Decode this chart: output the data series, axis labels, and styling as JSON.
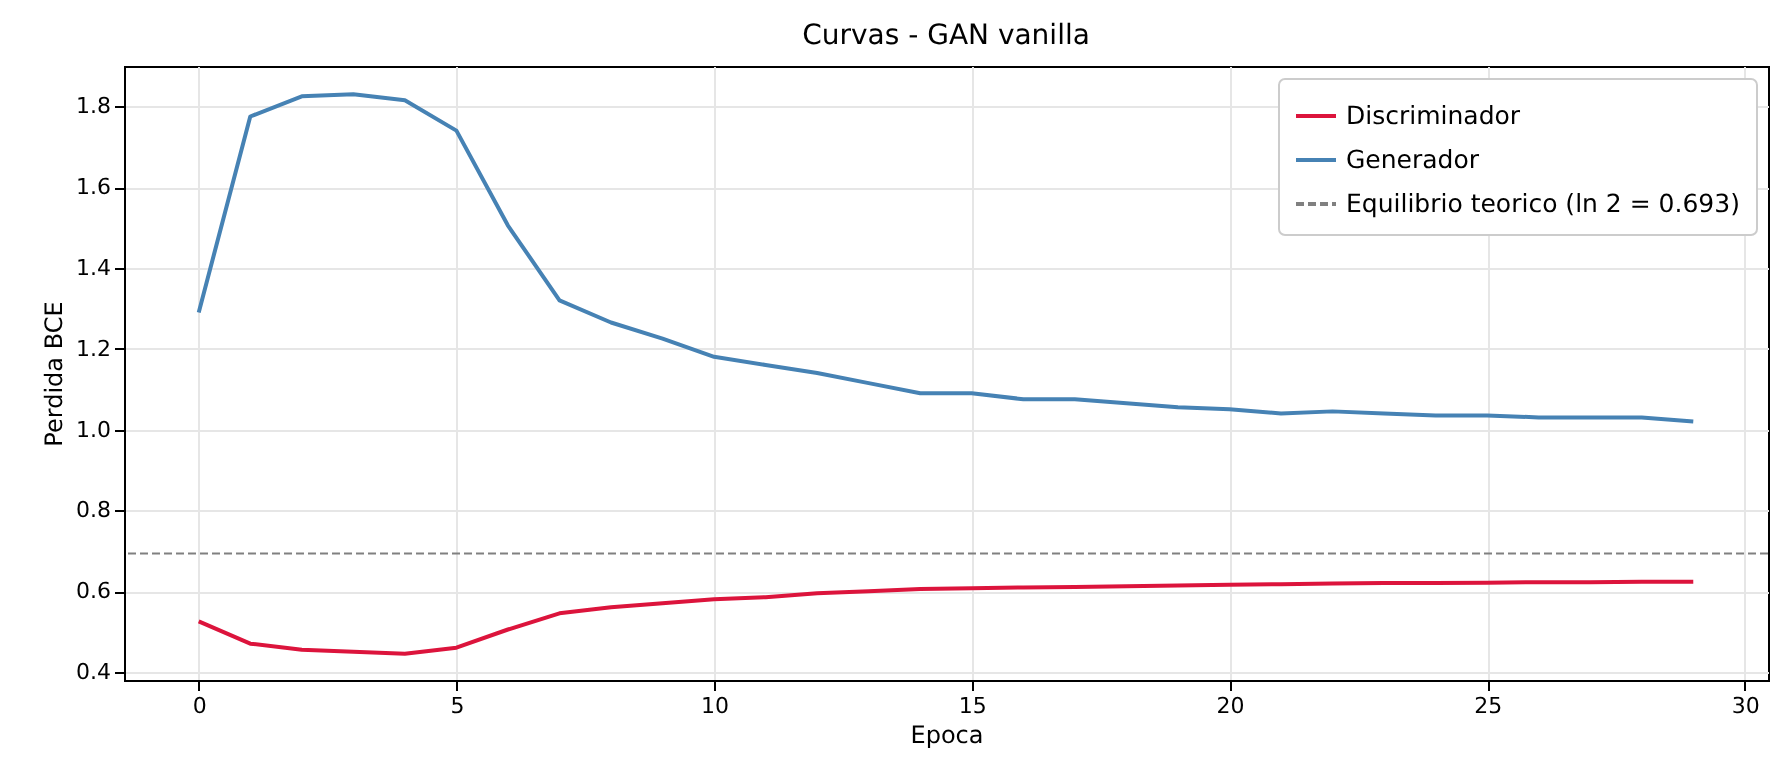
{
  "chart_data": {
    "type": "line",
    "title": "Curvas - GAN vanilla",
    "xlabel": "Epoca",
    "ylabel": "Perdida BCE",
    "x": [
      0,
      1,
      2,
      3,
      4,
      5,
      6,
      7,
      8,
      9,
      10,
      11,
      12,
      13,
      14,
      15,
      16,
      17,
      18,
      19,
      20,
      21,
      22,
      23,
      24,
      25,
      26,
      27,
      28,
      29
    ],
    "series": [
      {
        "name": "Discriminador",
        "color": "#dc143c",
        "values": [
          0.525,
          0.47,
          0.455,
          0.45,
          0.445,
          0.46,
          0.505,
          0.545,
          0.56,
          0.57,
          0.58,
          0.585,
          0.595,
          0.6,
          0.605,
          0.607,
          0.609,
          0.61,
          0.612,
          0.614,
          0.616,
          0.617,
          0.619,
          0.62,
          0.62,
          0.621,
          0.622,
          0.622,
          0.623,
          0.623
        ]
      },
      {
        "name": "Generador",
        "color": "#4682b4",
        "values": [
          1.29,
          1.775,
          1.825,
          1.83,
          1.815,
          1.74,
          1.505,
          1.32,
          1.265,
          1.225,
          1.18,
          1.16,
          1.14,
          1.115,
          1.09,
          1.09,
          1.075,
          1.075,
          1.065,
          1.055,
          1.05,
          1.04,
          1.045,
          1.04,
          1.035,
          1.035,
          1.03,
          1.03,
          1.03,
          1.02
        ]
      }
    ],
    "ref_lines": [
      {
        "axis": "y",
        "value": 0.693,
        "label": "Equilibrio teorico (ln 2 = 0.693)",
        "color": "#808080",
        "line_style": "dashed"
      }
    ],
    "xlim": [
      -1.45,
      30.45
    ],
    "xticks": [
      0,
      5,
      10,
      15,
      20,
      25,
      30
    ],
    "ylim": [
      0.38,
      1.9
    ],
    "yticks": [
      {
        "value": 0.4,
        "label": "0.4"
      },
      {
        "value": 0.6,
        "label": "0.6"
      },
      {
        "value": 0.8,
        "label": "0.8"
      },
      {
        "value": 1.0,
        "label": "1.0"
      },
      {
        "value": 1.2,
        "label": "1.2"
      },
      {
        "value": 1.4,
        "label": "1.4"
      },
      {
        "value": 1.6,
        "label": "1.6"
      },
      {
        "value": 1.8,
        "label": "1.8"
      }
    ],
    "grid": true,
    "legend": "top right",
    "line_style": "solid",
    "marker": "none"
  }
}
